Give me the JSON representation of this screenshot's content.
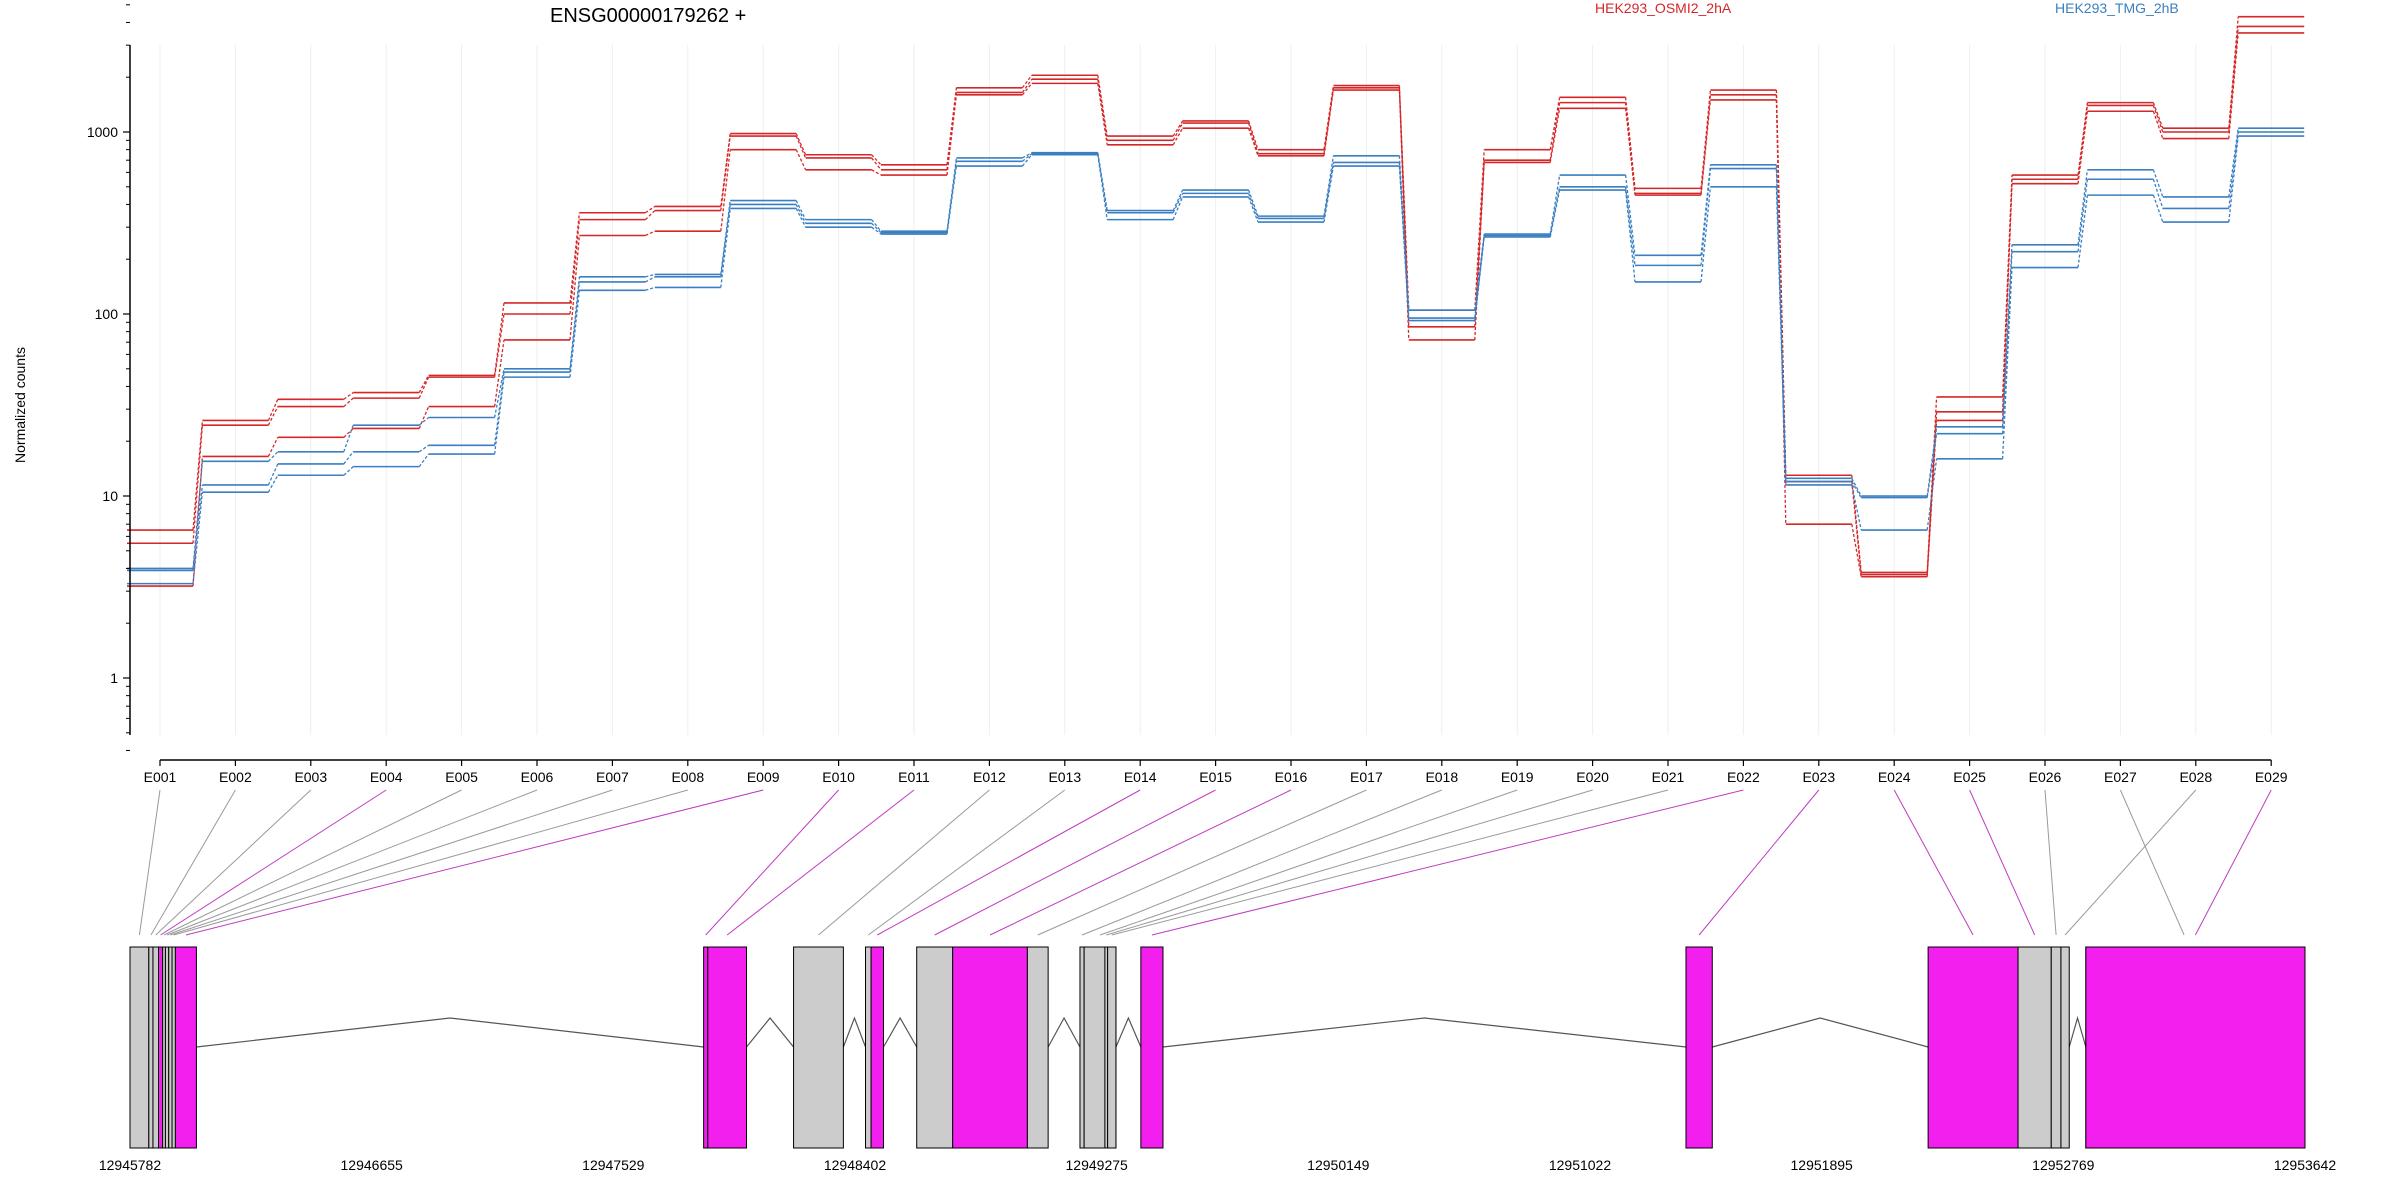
{
  "title": "ENSG00000179262 +",
  "legend": {
    "placement": "top-right",
    "items": [
      {
        "label": "HEK293_OSMI2_2hA",
        "color": "#d62728"
      },
      {
        "label": "HEK293_TMG_2hB",
        "color": "#3a7fc1"
      }
    ]
  },
  "chart_data": {
    "type": "line",
    "title": "ENSG00000179262 +",
    "ylabel": "Normalized counts",
    "yscale": "log",
    "yticks": [
      1,
      10,
      100,
      1000
    ],
    "ytick_labels": [
      "1",
      "10",
      "100",
      "1000"
    ],
    "ylim": [
      0.4,
      6000
    ],
    "grid": "vertical",
    "categories": [
      "E001",
      "E002",
      "E003",
      "E004",
      "E005",
      "E006",
      "E007",
      "E008",
      "E009",
      "E010",
      "E011",
      "E012",
      "E013",
      "E014",
      "E015",
      "E016",
      "E017",
      "E018",
      "E019",
      "E020",
      "E021",
      "E022",
      "E023",
      "E024",
      "E025",
      "E026",
      "E027",
      "E028",
      "E029"
    ],
    "series": [
      {
        "name": "HEK293_OSMI2_2hA",
        "color": "#d62728",
        "values": [
          6.5,
          26,
          34,
          37,
          46,
          115,
          360,
          390,
          980,
          750,
          660,
          1750,
          2050,
          950,
          1150,
          800,
          1800,
          105,
          800,
          1550,
          490,
          1700,
          13,
          3.8,
          35,
          580,
          1450,
          1050,
          4300
        ]
      },
      {
        "name": "HEK293_OSMI2_2hA",
        "color": "#d62728",
        "values": [
          5.5,
          24.5,
          31,
          34.5,
          45,
          100,
          330,
          370,
          950,
          720,
          620,
          1650,
          1950,
          900,
          1120,
          760,
          1750,
          85,
          700,
          1450,
          460,
          1600,
          12,
          3.7,
          29,
          550,
          1400,
          1000,
          3800
        ]
      },
      {
        "name": "HEK293_OSMI2_2hA",
        "color": "#d62728",
        "values": [
          3.2,
          16.5,
          21,
          23.5,
          31,
          72,
          270,
          285,
          800,
          620,
          580,
          1600,
          1850,
          850,
          1050,
          740,
          1700,
          72,
          680,
          1350,
          450,
          1500,
          7,
          3.6,
          26,
          520,
          1300,
          920,
          3500
        ]
      },
      {
        "name": "HEK293_TMG_2hB",
        "color": "#3a7fc1",
        "values": [
          4,
          15.5,
          17.5,
          24.5,
          27,
          50,
          160,
          165,
          420,
          330,
          285,
          720,
          770,
          370,
          480,
          345,
          740,
          105,
          275,
          580,
          210,
          660,
          12.5,
          10,
          24,
          240,
          620,
          440,
          1050
        ]
      },
      {
        "name": "HEK293_TMG_2hB",
        "color": "#3a7fc1",
        "values": [
          3.9,
          11.5,
          15,
          17.5,
          19,
          48,
          150,
          160,
          400,
          315,
          280,
          690,
          760,
          360,
          460,
          335,
          680,
          95,
          270,
          500,
          185,
          630,
          12,
          9.8,
          22,
          220,
          550,
          380,
          1000
        ]
      },
      {
        "name": "HEK293_TMG_2hB",
        "color": "#3a7fc1",
        "values": [
          3.3,
          10.5,
          13,
          14.5,
          17,
          45,
          135,
          140,
          380,
          300,
          275,
          650,
          750,
          330,
          440,
          320,
          650,
          92,
          265,
          480,
          150,
          500,
          11.5,
          6.5,
          16,
          180,
          450,
          320,
          950
        ]
      }
    ],
    "exon_colors": [
      "#9a9a9a",
      "#9a9a9a",
      "#9a9a9a",
      "#c03cc0",
      "#9a9a9a",
      "#9a9a9a",
      "#9a9a9a",
      "#9a9a9a",
      "#c03cc0",
      "#c03cc0",
      "#c03cc0",
      "#9a9a9a",
      "#9a9a9a",
      "#c03cc0",
      "#c03cc0",
      "#c03cc0",
      "#9a9a9a",
      "#9a9a9a",
      "#9a9a9a",
      "#9a9a9a",
      "#9a9a9a",
      "#c03cc0",
      "#c03cc0",
      "#c03cc0",
      "#c03cc0",
      "#9a9a9a",
      "#9a9a9a",
      "#9a9a9a",
      "#c03cc0"
    ],
    "gene_model": {
      "start": 12945782,
      "end": 12953642,
      "coordinate_ticks": [
        "12945782",
        "12946655",
        "12947529",
        "12948402",
        "12949275",
        "12950149",
        "12951022",
        "12951895",
        "12952769",
        "12953642"
      ],
      "exons": [
        {
          "id": "E001",
          "start": 12945782,
          "end": 12945850,
          "fill": "#cccccc"
        },
        {
          "id": "E002",
          "start": 12945850,
          "end": 12945865,
          "fill": "#cccccc"
        },
        {
          "id": "E003",
          "start": 12945865,
          "end": 12945885,
          "fill": "#cccccc"
        },
        {
          "id": "E004",
          "start": 12945885,
          "end": 12945900,
          "fill": "#f31fef"
        },
        {
          "id": "E005",
          "start": 12945900,
          "end": 12945910,
          "fill": "#cccccc"
        },
        {
          "id": "E006",
          "start": 12945910,
          "end": 12945922,
          "fill": "#cccccc"
        },
        {
          "id": "E007",
          "start": 12945922,
          "end": 12945934,
          "fill": "#cccccc"
        },
        {
          "id": "E008",
          "start": 12945934,
          "end": 12945946,
          "fill": "#cccccc"
        },
        {
          "id": "E009",
          "start": 12945946,
          "end": 12946022,
          "fill": "#f31fef"
        },
        {
          "id": "E010",
          "start": 12947855,
          "end": 12947870,
          "fill": "#f31fef"
        },
        {
          "id": "E011",
          "start": 12947870,
          "end": 12948010,
          "fill": "#f31fef"
        },
        {
          "id": "E012",
          "start": 12948180,
          "end": 12948360,
          "fill": "#cccccc"
        },
        {
          "id": "E013",
          "start": 12948440,
          "end": 12948460,
          "fill": "#cccccc"
        },
        {
          "id": "E014",
          "start": 12948460,
          "end": 12948505,
          "fill": "#f31fef"
        },
        {
          "id": "E015",
          "start": 12948625,
          "end": 12948755,
          "fill": "#cccccc"
        },
        {
          "id": "E016",
          "start": 12948755,
          "end": 12949025,
          "fill": "#f31fef"
        },
        {
          "id": "E017",
          "start": 12949025,
          "end": 12949100,
          "fill": "#cccccc"
        },
        {
          "id": "E018",
          "start": 12949215,
          "end": 12949230,
          "fill": "#cccccc"
        },
        {
          "id": "E019",
          "start": 12949230,
          "end": 12949345,
          "fill": "#cccccc"
        },
        {
          "id": "E020",
          "start": 12949305,
          "end": 12949315,
          "fill": "#cccccc"
        },
        {
          "id": "E021",
          "start": 12949315,
          "end": 12949345,
          "fill": "#cccccc"
        },
        {
          "id": "E022",
          "start": 12949435,
          "end": 12949515,
          "fill": "#f31fef"
        },
        {
          "id": "E023",
          "start": 12951405,
          "end": 12951500,
          "fill": "#f31fef"
        },
        {
          "id": "E024",
          "start": 12952280,
          "end": 12952605,
          "fill": "#f31fef"
        },
        {
          "id": "E025",
          "start": 12952605,
          "end": 12952725,
          "fill": "#cccccc"
        },
        {
          "id": "E026",
          "start": 12952725,
          "end": 12952760,
          "fill": "#cccccc"
        },
        {
          "id": "E027",
          "start": 12952850,
          "end": 12953560,
          "fill": "#f31fef"
        },
        {
          "id": "E028",
          "start": 12952760,
          "end": 12952790,
          "fill": "#cccccc"
        },
        {
          "id": "E029",
          "start": 12952850,
          "end": 12953642,
          "fill": "#f31fef"
        }
      ]
    }
  }
}
